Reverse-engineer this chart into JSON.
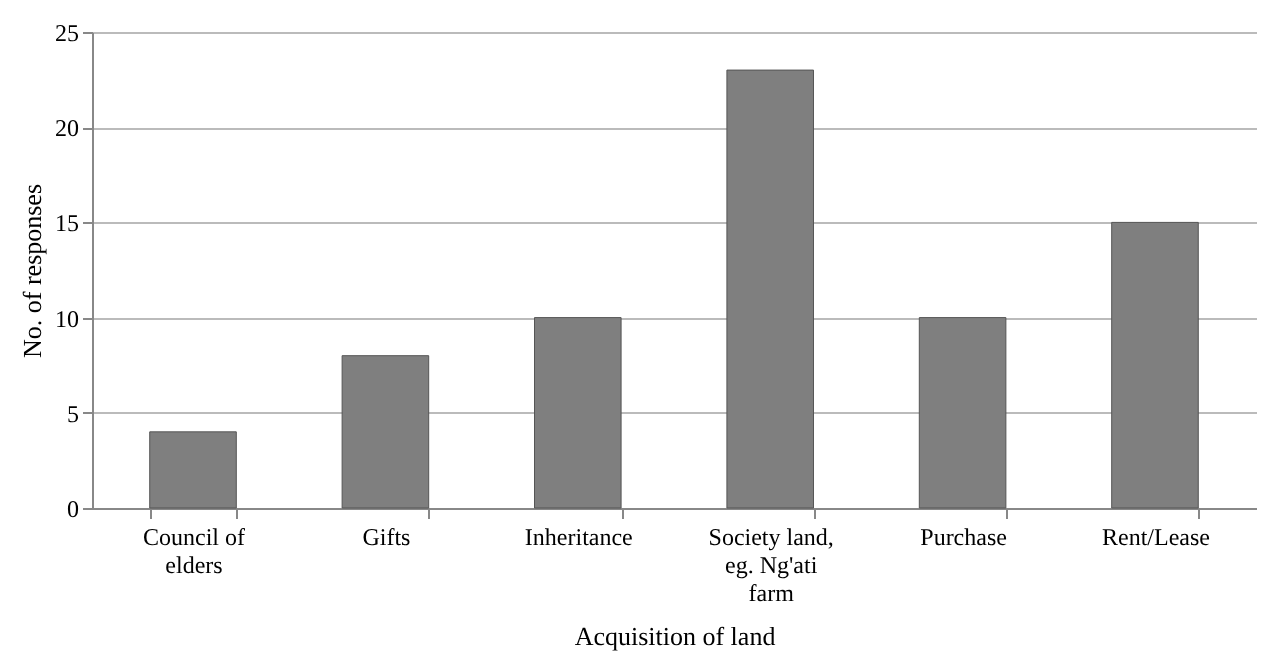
{
  "chart_data": {
    "type": "bar",
    "xlabel": "Acquisition of land",
    "ylabel": "No. of responses",
    "categories": [
      "Council of elders",
      "Gifts",
      "Inheritance",
      "Society land, eg. Ng'ati farm",
      "Purchase",
      "Rent/Lease"
    ],
    "values": [
      4,
      8,
      10,
      23,
      10,
      15
    ],
    "color": "#7f7f7f",
    "ylim": [
      0,
      25
    ],
    "yticks": [
      0,
      5,
      10,
      15,
      20,
      25
    ],
    "grid": "y"
  }
}
